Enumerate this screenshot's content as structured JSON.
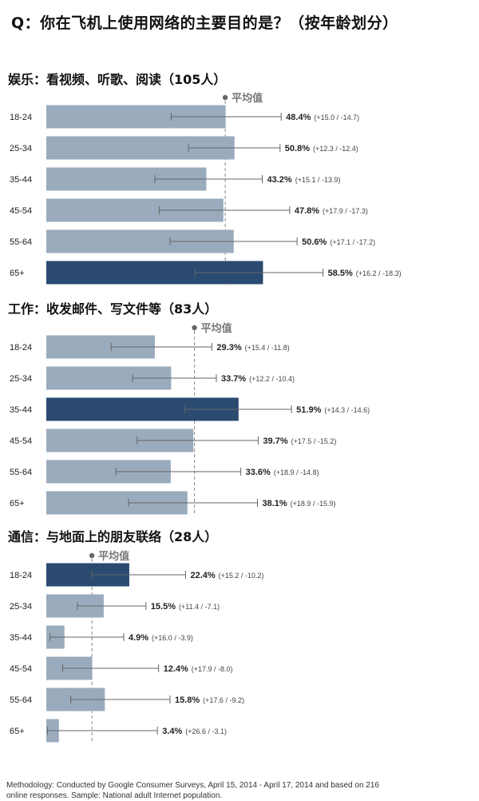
{
  "title": "Q：你在飞机上使用网络的主要目的是？（按年龄划分）",
  "avg_label": "平均值",
  "colors": {
    "bar_normal": "#9aabbd",
    "bar_highlight": "#2a4a70",
    "error_bar": "#666666",
    "avg_line": "#888888"
  },
  "chart_data": [
    {
      "type": "bar",
      "title": "娱乐：看视频、听歌、阅读（105人）",
      "categories": [
        "18-24",
        "25-34",
        "35-44",
        "45-54",
        "55-64",
        "65+"
      ],
      "values": [
        48.4,
        50.8,
        43.2,
        47.8,
        50.6,
        58.5
      ],
      "value_labels": [
        "48.4%",
        "50.8%",
        "43.2%",
        "47.8%",
        "50.6%",
        "58.5%"
      ],
      "error_plus": [
        15.0,
        12.3,
        15.1,
        17.9,
        17.1,
        16.2
      ],
      "error_minus": [
        14.7,
        12.4,
        13.9,
        17.3,
        17.2,
        18.3
      ],
      "error_labels": [
        "(+15.0 / -14.7)",
        "(+12.3 / -12.4)",
        "(+15.1 / -13.9)",
        "(+17.9 / -17.3)",
        "(+17.1 / -17.2)",
        "(+16.2 / -18.3)"
      ],
      "highlight": [
        false,
        false,
        false,
        false,
        false,
        true
      ],
      "average": 48.3,
      "xlim": [
        0,
        115
      ]
    },
    {
      "type": "bar",
      "title": "工作：收发邮件、写文件等（83人）",
      "categories": [
        "18-24",
        "25-34",
        "35-44",
        "45-54",
        "55-64",
        "65+"
      ],
      "values": [
        29.3,
        33.7,
        51.9,
        39.7,
        33.6,
        38.1
      ],
      "value_labels": [
        "29.3%",
        "33.7%",
        "51.9%",
        "39.7%",
        "33.6%",
        "38.1%"
      ],
      "error_plus": [
        15.4,
        12.2,
        14.3,
        17.5,
        18.9,
        18.9
      ],
      "error_minus": [
        11.8,
        10.4,
        14.6,
        15.2,
        14.8,
        15.9
      ],
      "error_labels": [
        "(+15.4 / -11.8)",
        "(+12.2 / -10.4)",
        "(+14.3 / -14.6)",
        "(+17.5 / -15.2)",
        "(+18.9 / -14.8)",
        "(+18.9 / -15.9)"
      ],
      "highlight": [
        false,
        false,
        true,
        false,
        false,
        false
      ],
      "average": 40.0,
      "xlim": [
        0,
        115
      ]
    },
    {
      "type": "bar",
      "title": "通信：与地面上的朋友联络（28人）",
      "categories": [
        "18-24",
        "25-34",
        "35-44",
        "45-54",
        "55-64",
        "65+"
      ],
      "values": [
        22.4,
        15.5,
        4.9,
        12.4,
        15.8,
        3.4
      ],
      "value_labels": [
        "22.4%",
        "15.5%",
        "4.9%",
        "12.4%",
        "15.8%",
        "3.4%"
      ],
      "error_plus": [
        15.2,
        11.4,
        16.0,
        17.9,
        17.6,
        26.6
      ],
      "error_minus": [
        10.2,
        7.1,
        3.9,
        8.0,
        9.2,
        3.1
      ],
      "error_labels": [
        "(+15.2 / -10.2)",
        "(+11.4 / -7.1)",
        "(+16.0 / -3.9)",
        "(+17.9 / -8.0)",
        "(+17.6 / -9.2)",
        "(+26.6 / -3.1)"
      ],
      "highlight": [
        true,
        false,
        false,
        false,
        false,
        false
      ],
      "average": 12.3,
      "xlim": [
        0,
        115
      ]
    }
  ],
  "footnote": "Methodology: Conducted by Google Consumer Surveys, April 15, 2014 - April 17, 2014 and based on 216 online responses. Sample: National adult Internet population."
}
